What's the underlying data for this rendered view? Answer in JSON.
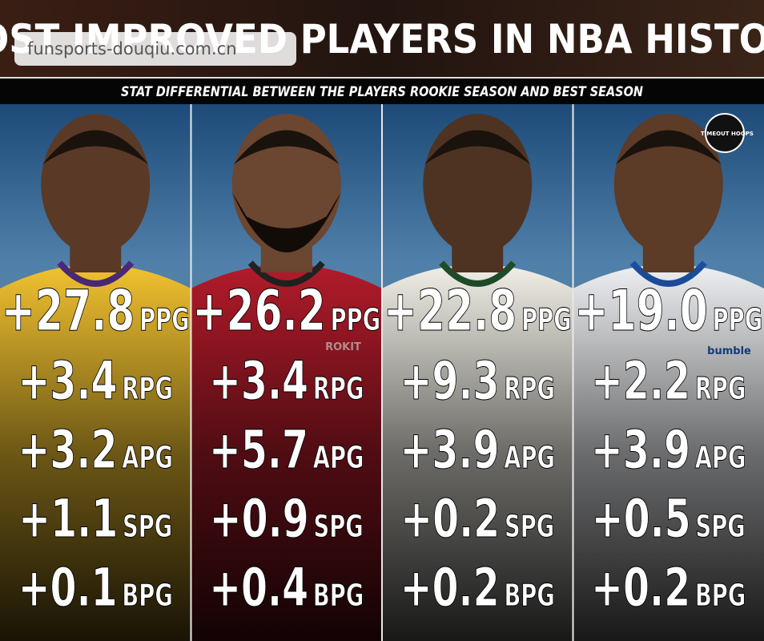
{
  "header": {
    "title": "MOST IMPROVED PLAYERS IN NBA HISTORY",
    "subtitle": "STAT DIFFERENTIAL BETWEEN THE PLAYERS ROOKIE SEASON AND BEST SEASON",
    "watermark": "funsports-douqiu.com.cn",
    "logo": "TIMEOUT HOOPS"
  },
  "players": [
    {
      "jersey_text": null,
      "stats": [
        {
          "value": "+27.8",
          "unit": "PPG"
        },
        {
          "value": "+3.4",
          "unit": "RPG"
        },
        {
          "value": "+3.2",
          "unit": "APG"
        },
        {
          "value": "+1.1",
          "unit": "SPG"
        },
        {
          "value": "+0.1",
          "unit": "BPG"
        }
      ]
    },
    {
      "jersey_text": "ROKIT",
      "stats": [
        {
          "value": "+26.2",
          "unit": "PPG"
        },
        {
          "value": "+3.4",
          "unit": "RPG"
        },
        {
          "value": "+5.7",
          "unit": "APG"
        },
        {
          "value": "+0.9",
          "unit": "SPG"
        },
        {
          "value": "+0.4",
          "unit": "BPG"
        }
      ]
    },
    {
      "jersey_text": null,
      "stats": [
        {
          "value": "+22.8",
          "unit": "PPG"
        },
        {
          "value": "+9.3",
          "unit": "RPG"
        },
        {
          "value": "+3.9",
          "unit": "APG"
        },
        {
          "value": "+0.2",
          "unit": "SPG"
        },
        {
          "value": "+0.2",
          "unit": "BPG"
        }
      ]
    },
    {
      "jersey_text": "bumble",
      "stats": [
        {
          "value": "+19.0",
          "unit": "PPG"
        },
        {
          "value": "+2.2",
          "unit": "RPG"
        },
        {
          "value": "+3.9",
          "unit": "APG"
        },
        {
          "value": "+0.5",
          "unit": "SPG"
        },
        {
          "value": "+0.2",
          "unit": "BPG"
        }
      ]
    }
  ]
}
